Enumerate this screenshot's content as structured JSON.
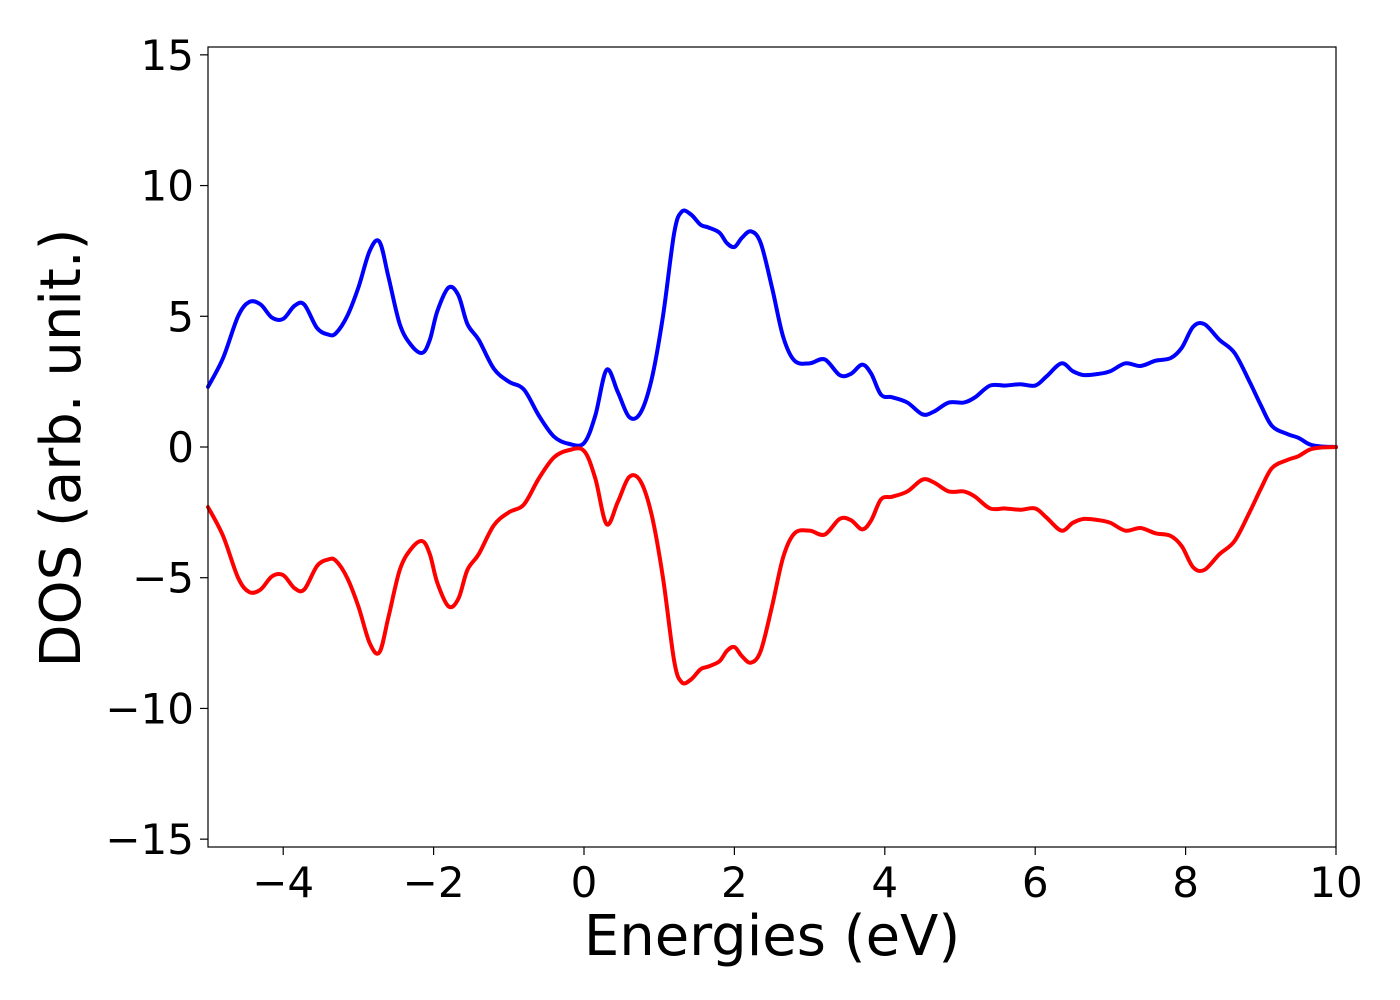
{
  "chart_data": {
    "type": "line",
    "title": "",
    "xlabel": "Energies (eV)",
    "ylabel": "DOS (arb. unit.)",
    "xlim": [
      -5,
      10
    ],
    "ylim": [
      -15.3,
      15.3
    ],
    "xticks": [
      -4,
      -2,
      0,
      2,
      4,
      6,
      8,
      10
    ],
    "xtick_labels": [
      "−4",
      "−2",
      "0",
      "2",
      "4",
      "6",
      "8",
      "10"
    ],
    "yticks": [
      15,
      10,
      5,
      0,
      -5,
      -10,
      -15
    ],
    "ytick_labels": [
      "15",
      "10",
      "5",
      "0",
      "−5",
      "−10",
      "−15"
    ],
    "grid": false,
    "series": [
      {
        "color": "#0000ff",
        "x": [
          -5.0,
          -4.8,
          -4.6,
          -4.45,
          -4.3,
          -4.15,
          -4.0,
          -3.85,
          -3.72,
          -3.55,
          -3.4,
          -3.3,
          -3.15,
          -3.0,
          -2.85,
          -2.72,
          -2.6,
          -2.45,
          -2.3,
          -2.15,
          -2.05,
          -1.95,
          -1.8,
          -1.67,
          -1.55,
          -1.4,
          -1.2,
          -1.0,
          -0.8,
          -0.6,
          -0.4,
          -0.2,
          0.0,
          0.15,
          0.3,
          0.45,
          0.6,
          0.75,
          0.9,
          1.05,
          1.2,
          1.3,
          1.42,
          1.55,
          1.65,
          1.8,
          1.9,
          2.0,
          2.1,
          2.22,
          2.35,
          2.5,
          2.65,
          2.8,
          3.0,
          3.2,
          3.4,
          3.55,
          3.7,
          3.82,
          3.95,
          4.1,
          4.3,
          4.5,
          4.65,
          4.85,
          5.05,
          5.2,
          5.4,
          5.6,
          5.8,
          6.0,
          6.15,
          6.35,
          6.5,
          6.65,
          6.85,
          7.0,
          7.2,
          7.4,
          7.6,
          7.8,
          7.95,
          8.1,
          8.25,
          8.45,
          8.65,
          8.85,
          9.0,
          9.15,
          9.35,
          9.5,
          9.65,
          9.8,
          10.0
        ],
        "y": [
          2.3,
          3.4,
          5.0,
          5.55,
          5.45,
          4.95,
          4.9,
          5.4,
          5.45,
          4.55,
          4.3,
          4.35,
          5.0,
          6.1,
          7.5,
          7.85,
          6.5,
          4.7,
          3.9,
          3.6,
          4.1,
          5.2,
          6.1,
          5.8,
          4.7,
          4.1,
          3.0,
          2.5,
          2.2,
          1.2,
          0.4,
          0.12,
          0.15,
          1.2,
          2.95,
          2.1,
          1.15,
          1.3,
          2.6,
          5.0,
          8.2,
          9.0,
          8.9,
          8.5,
          8.4,
          8.2,
          7.8,
          7.65,
          8.0,
          8.25,
          7.8,
          6.1,
          4.2,
          3.3,
          3.2,
          3.35,
          2.75,
          2.8,
          3.15,
          2.8,
          2.0,
          1.9,
          1.7,
          1.25,
          1.35,
          1.7,
          1.7,
          1.9,
          2.35,
          2.35,
          2.4,
          2.35,
          2.7,
          3.2,
          2.9,
          2.75,
          2.8,
          2.9,
          3.2,
          3.1,
          3.3,
          3.4,
          3.8,
          4.6,
          4.7,
          4.1,
          3.6,
          2.5,
          1.6,
          0.8,
          0.5,
          0.35,
          0.1,
          0.02,
          0.0
        ]
      },
      {
        "color": "#ff0000",
        "x": [
          -5.0,
          -4.8,
          -4.6,
          -4.45,
          -4.3,
          -4.15,
          -4.0,
          -3.85,
          -3.72,
          -3.55,
          -3.4,
          -3.3,
          -3.15,
          -3.0,
          -2.85,
          -2.72,
          -2.6,
          -2.45,
          -2.3,
          -2.15,
          -2.05,
          -1.95,
          -1.8,
          -1.67,
          -1.55,
          -1.4,
          -1.2,
          -1.0,
          -0.8,
          -0.6,
          -0.4,
          -0.2,
          0.0,
          0.15,
          0.3,
          0.45,
          0.6,
          0.75,
          0.9,
          1.05,
          1.2,
          1.3,
          1.42,
          1.55,
          1.65,
          1.8,
          1.9,
          2.0,
          2.1,
          2.22,
          2.35,
          2.5,
          2.65,
          2.8,
          3.0,
          3.2,
          3.4,
          3.55,
          3.7,
          3.82,
          3.95,
          4.1,
          4.3,
          4.5,
          4.65,
          4.85,
          5.05,
          5.2,
          5.4,
          5.6,
          5.8,
          6.0,
          6.15,
          6.35,
          6.5,
          6.65,
          6.85,
          7.0,
          7.2,
          7.4,
          7.6,
          7.8,
          7.95,
          8.1,
          8.25,
          8.45,
          8.65,
          8.85,
          9.0,
          9.15,
          9.35,
          9.5,
          9.65,
          9.8,
          10.0
        ],
        "y": [
          -2.3,
          -3.4,
          -5.0,
          -5.55,
          -5.45,
          -4.95,
          -4.9,
          -5.4,
          -5.45,
          -4.55,
          -4.3,
          -4.35,
          -5.0,
          -6.1,
          -7.5,
          -7.85,
          -6.5,
          -4.7,
          -3.9,
          -3.6,
          -4.1,
          -5.2,
          -6.1,
          -5.8,
          -4.7,
          -4.1,
          -3.0,
          -2.5,
          -2.2,
          -1.2,
          -0.4,
          -0.12,
          -0.15,
          -1.2,
          -2.95,
          -2.1,
          -1.15,
          -1.3,
          -2.6,
          -5.0,
          -8.2,
          -9.0,
          -8.9,
          -8.5,
          -8.4,
          -8.2,
          -7.8,
          -7.65,
          -8.0,
          -8.25,
          -7.8,
          -6.1,
          -4.2,
          -3.3,
          -3.2,
          -3.35,
          -2.75,
          -2.8,
          -3.15,
          -2.8,
          -2.0,
          -1.9,
          -1.7,
          -1.25,
          -1.35,
          -1.7,
          -1.7,
          -1.9,
          -2.35,
          -2.35,
          -2.4,
          -2.35,
          -2.7,
          -3.2,
          -2.9,
          -2.75,
          -2.8,
          -2.9,
          -3.2,
          -3.1,
          -3.3,
          -3.4,
          -3.8,
          -4.6,
          -4.7,
          -4.1,
          -3.6,
          -2.5,
          -1.6,
          -0.8,
          -0.5,
          -0.35,
          -0.1,
          -0.02,
          0.0
        ]
      }
    ]
  }
}
